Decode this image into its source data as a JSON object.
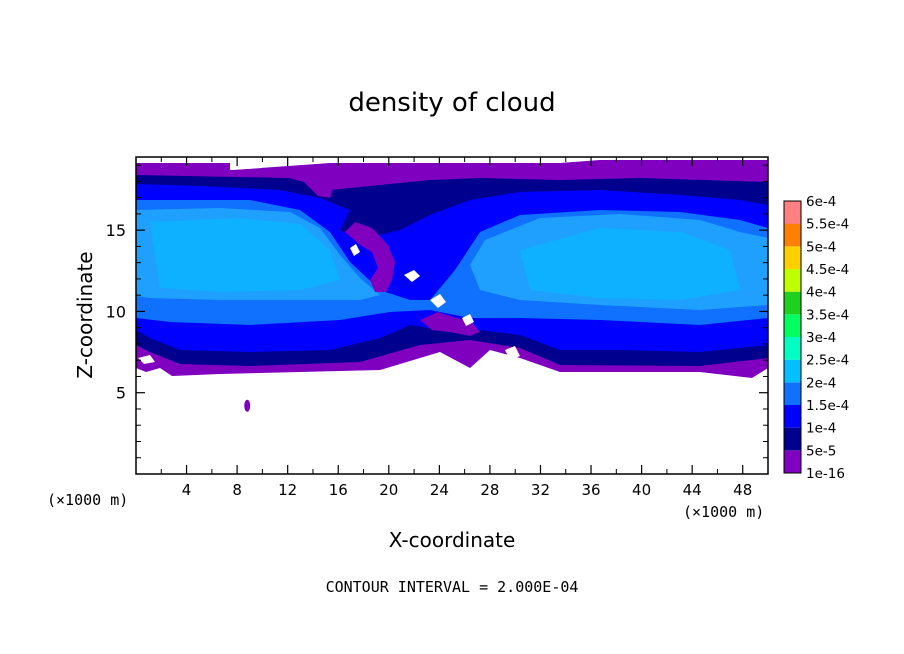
{
  "chart_data": {
    "type": "heatmap",
    "title": "density of cloud",
    "xlabel": "X-coordinate",
    "ylabel": "Z-coordinate",
    "x_unit_label": "(×1000 m)",
    "y_unit_label": "(×1000 m)",
    "footer": "CONTOUR INTERVAL = 2.000E-04",
    "xlim": [
      0,
      50
    ],
    "ylim": [
      0,
      19.5
    ],
    "x_ticks": [
      "4",
      "8",
      "12",
      "16",
      "20",
      "24",
      "28",
      "32",
      "36",
      "40",
      "44",
      "48"
    ],
    "y_ticks": [
      "5",
      "10",
      "15"
    ],
    "colorbar": {
      "labels": [
        "1e-16",
        "5e-5",
        "1e-4",
        "1.5e-4",
        "2e-4",
        "2.5e-4",
        "3e-4",
        "3.5e-4",
        "4e-4",
        "4.5e-4",
        "5e-4",
        "5.5e-4",
        "6e-4"
      ],
      "colors": [
        "#7f00bf",
        "#00008f",
        "#0000ff",
        "#1070ff",
        "#00c0ff",
        "#00ffc0",
        "#00ff60",
        "#20d020",
        "#c0ff00",
        "#ffd000",
        "#ff8000",
        "#ff2000",
        "#ff8080"
      ]
    },
    "regions": {
      "cloud_layer_z_range": [
        6.3,
        19.5
      ],
      "stratiform_cores": [
        {
          "name": "left",
          "x_range": [
            0,
            23
          ],
          "z_range": [
            10.5,
            17
          ]
        },
        {
          "name": "right",
          "x_range": [
            28,
            50
          ],
          "z_range": [
            10,
            16
          ]
        }
      ],
      "isolated_patch": {
        "x": 8.8,
        "z": 4.2
      }
    }
  }
}
